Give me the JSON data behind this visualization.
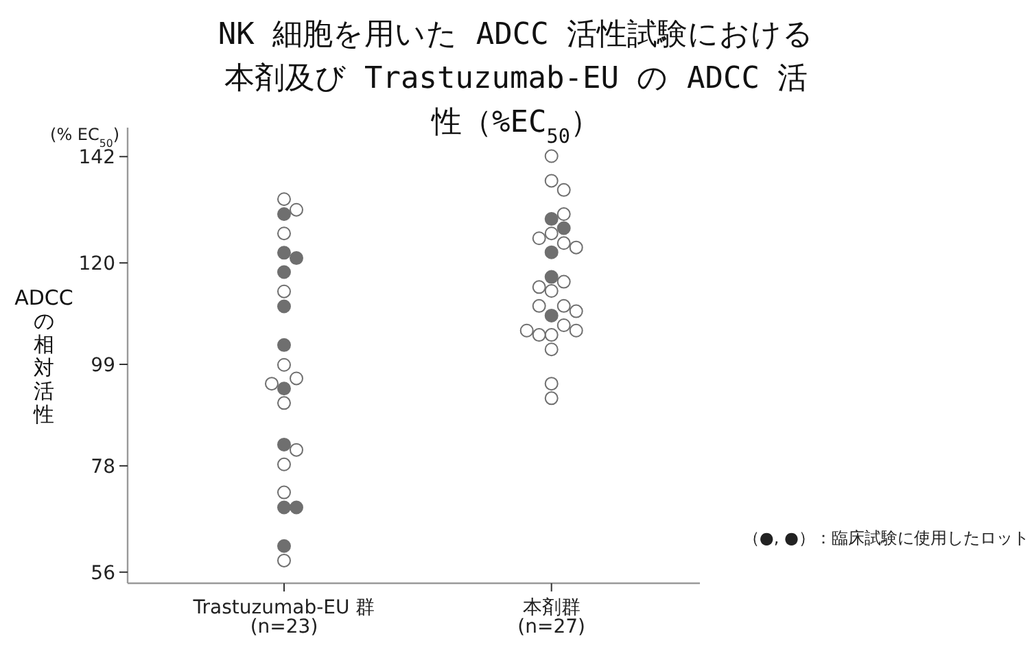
{
  "chart_data": {
    "type": "scatter",
    "title": "NK 細胞を用いた ADCC 活性試験における本剤及び Trastuzumab-EU の ADCC 活性（%EC$_{50}$）",
    "ylabel": "ADCCの相対活性",
    "annotations": [
      "(% EC$_{50}$)",
      "（●, ●）：臨床試験に使用したロット"
    ],
    "categories": [
      "Trastuzumab-EU 群\n(n=23)",
      "本剤群\n(n=27)"
    ],
    "ylim": [
      53.7,
      148
    ],
    "yticks": [
      56,
      78,
      99,
      120,
      142
    ],
    "marker": "circle",
    "grid": false,
    "series": [
      {
        "color": "#6f6f6f",
        "x": [
          "Trastuzumab-EU 群\n(n=23)",
          "Trastuzumab-EU 群\n(n=23)",
          "Trastuzumab-EU 群\n(n=23)",
          "Trastuzumab-EU 群\n(n=23)",
          "Trastuzumab-EU 群\n(n=23)",
          "Trastuzumab-EU 群\n(n=23)",
          "Trastuzumab-EU 群\n(n=23)",
          "Trastuzumab-EU 群\n(n=23)",
          "Trastuzumab-EU 群\n(n=23)",
          "Trastuzumab-EU 群\n(n=23)",
          "Trastuzumab-EU 群\n(n=23)",
          "本剤群\n(n=27)",
          "本剤群\n(n=27)",
          "本剤群\n(n=27)",
          "本剤群\n(n=27)",
          "本剤群\n(n=27)"
        ],
        "values": [
          130.1,
          122.1,
          121.0,
          118.1,
          111.0,
          103.0,
          94.0,
          82.4,
          69.4,
          69.4,
          61.4,
          129.1,
          127.2,
          122.2,
          117.1,
          109.1
        ]
      },
      {
        "color": "#ffffff",
        "x": [
          "Trastuzumab-EU 群\n(n=23)",
          "Trastuzumab-EU 群\n(n=23)",
          "Trastuzumab-EU 群\n(n=23)",
          "Trastuzumab-EU 群\n(n=23)",
          "Trastuzumab-EU 群\n(n=23)",
          "Trastuzumab-EU 群\n(n=23)",
          "Trastuzumab-EU 群\n(n=23)",
          "Trastuzumab-EU 群\n(n=23)",
          "Trastuzumab-EU 群\n(n=23)",
          "Trastuzumab-EU 群\n(n=23)",
          "Trastuzumab-EU 群\n(n=23)",
          "Trastuzumab-EU 群\n(n=23)",
          "本剤群\n(n=27)",
          "本剤群\n(n=27)",
          "本剤群\n(n=27)",
          "本剤群\n(n=27)",
          "本剤群\n(n=27)",
          "本剤群\n(n=27)",
          "本剤群\n(n=27)",
          "本剤群\n(n=27)",
          "本剤群\n(n=27)",
          "本剤群\n(n=27)",
          "本剤群\n(n=27)",
          "本剤群\n(n=27)",
          "本剤群\n(n=27)",
          "本剤群\n(n=27)",
          "本剤群\n(n=27)",
          "本剤群\n(n=27)",
          "本剤群\n(n=27)",
          "本剤群\n(n=27)",
          "本剤群\n(n=27)",
          "本剤群\n(n=27)",
          "本剤群\n(n=27)",
          "本剤群\n(n=27)"
        ],
        "values": [
          133.2,
          131.0,
          126.1,
          114.1,
          98.9,
          96.1,
          95.0,
          91.0,
          81.3,
          78.3,
          72.5,
          58.4,
          142.1,
          137.0,
          135.1,
          130.1,
          126.1,
          125.1,
          124.1,
          123.2,
          116.1,
          115.0,
          114.2,
          111.1,
          111.1,
          110.0,
          107.1,
          105.1,
          105.1,
          106.0,
          106.0,
          102.1,
          95.0,
          92.0
        ]
      }
    ]
  }
}
